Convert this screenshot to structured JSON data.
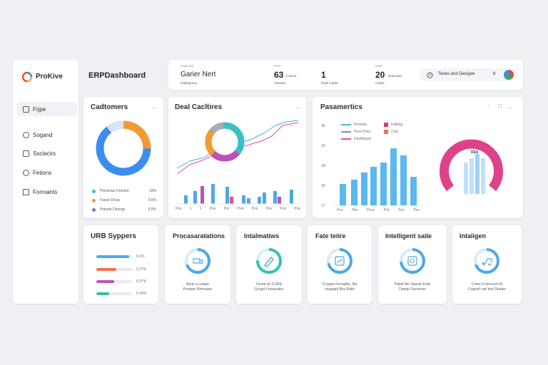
{
  "brand": {
    "name": "ProKive",
    "dashboard_title": "ERPDashboard"
  },
  "sidebar": {
    "items": [
      {
        "label": "Frjpe",
        "active": true
      },
      {
        "label": "Sogand",
        "active": false
      },
      {
        "label": "Ssclacirs",
        "active": false
      },
      {
        "label": "Fetions",
        "active": false
      },
      {
        "label": "Forroants",
        "active": false
      }
    ]
  },
  "header": {
    "main": {
      "label": "Caaminb",
      "title": "Garier Nert",
      "sub": "Daltrppress"
    },
    "stats": [
      {
        "label": "Peor",
        "value": "63",
        "unit": "Canina",
        "sub": "Aclsides"
      },
      {
        "label": "",
        "value": "1",
        "unit": "",
        "sub": "Patel Carite"
      },
      {
        "label": "Dear",
        "value": "20",
        "unit": "Dnesoblo",
        "sub": "Caline"
      }
    ],
    "search": {
      "text": "Tenes and Desigee",
      "count": "8"
    }
  },
  "customers": {
    "title": "Cadtomers",
    "legend": [
      {
        "name": "Pierreoas Fessted",
        "pct": "33%",
        "color": "#3ebfc8"
      },
      {
        "name": "Fasue Dinay",
        "pct": "6.5%",
        "color": "#f29533"
      },
      {
        "name": "Pstuele Deongy",
        "pct": "5.5%",
        "color": "#3b82f0"
      }
    ],
    "colors": {
      "blue": "#3b8ef0",
      "orange": "#f59a30",
      "light": "#d5e4f7"
    }
  },
  "deal": {
    "title": "Deal Cacltires",
    "x_labels": [
      "Pos",
      "1",
      "1",
      "Pos",
      "Pro",
      "Pon",
      "Pos",
      "Pos",
      "Pon",
      "Pos"
    ]
  },
  "parameters": {
    "title": "Pasamertics",
    "y_labels": [
      "48",
      "16",
      "1R",
      "18",
      "17"
    ],
    "x_labels": [
      "Pos",
      "Plm",
      "Posc",
      "Prd",
      "Pon",
      "Pos"
    ],
    "legend": [
      {
        "name": "Pnerilae",
        "color": "#3ebfc8"
      },
      {
        "name": "Pnor Pelor",
        "color": "#8a9099"
      },
      {
        "name": "Dastbfupal",
        "color": "#e54b8c"
      }
    ],
    "legend_right": [
      {
        "name": "Fatlinig",
        "color": "#d6397f"
      },
      {
        "name": "Cllar",
        "color": "#f07050"
      }
    ],
    "gauge_label": "DES"
  },
  "urb": {
    "title": "URB Syppers",
    "bars": [
      {
        "color": "#4eaaf0",
        "fill": 0.92,
        "pct": "8.3%"
      },
      {
        "color": "#f07050",
        "fill": 0.55,
        "pct": "0.37%"
      },
      {
        "color": "#c04fb8",
        "fill": 0.5,
        "pct": "6.37%"
      },
      {
        "color": "#36c2a0",
        "fill": 0.35,
        "pct": "5.39%"
      }
    ]
  },
  "minis": [
    {
      "title": "Procasaratations",
      "lines": [
        "Aone a coagie",
        "Pootasc Bortvates"
      ],
      "ring": "#4ea8e8",
      "icon": "truck"
    },
    {
      "title": "Intalmatiws",
      "lines": [
        "Ocoal urt CURE",
        "Gsogd Frosanates"
      ],
      "ring": "#36c2b4",
      "icon": "pen"
    },
    {
      "title": "Fate teiire",
      "lines": [
        "Ccogan Fecegtbs. Ilta",
        "cnagaad Bou Balle"
      ],
      "ring": "#4ea8e8",
      "icon": "doc"
    },
    {
      "title": "Intelligent saile",
      "lines": [
        "Pateb flm Sasore fouls",
        "Deege Facoenss"
      ],
      "ring": "#4ea8e8",
      "icon": "box"
    },
    {
      "title": "Intaligen",
      "lines": [
        "Cntee cf ieecoch Ilo",
        "Cogsstl carl brid Deales"
      ],
      "ring": "#4ea8e8",
      "icon": "truck"
    }
  ]
}
